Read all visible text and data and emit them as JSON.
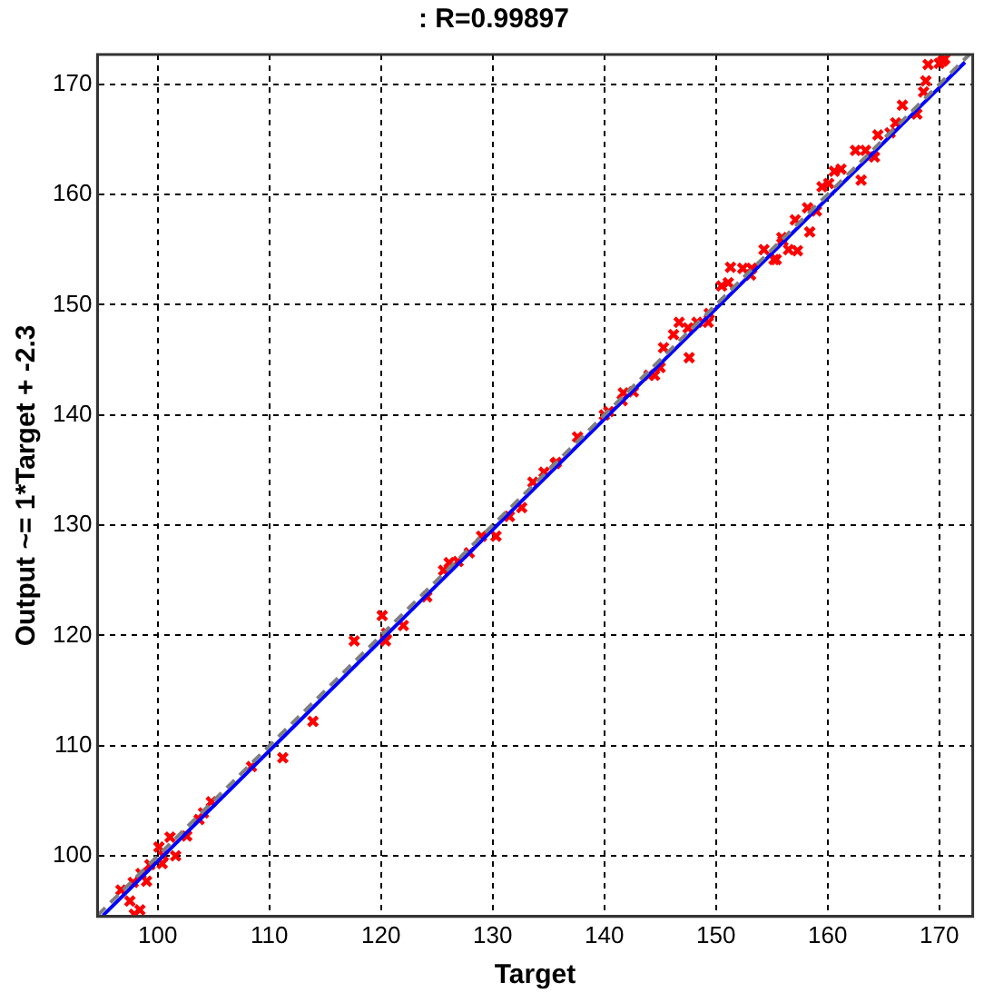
{
  "chart_data": {
    "type": "scatter",
    "title": ": R=0.99897",
    "xlabel": "Target",
    "ylabel": "Output ~= 1*Target + -2.3",
    "xlim": [
      94.6,
      173
    ],
    "ylim": [
      94.5,
      172.7
    ],
    "xticks": [
      100,
      110,
      120,
      130,
      140,
      150,
      160,
      170
    ],
    "yticks": [
      100,
      110,
      120,
      130,
      140,
      150,
      160,
      170
    ],
    "grid": true,
    "legend": false,
    "series": [
      {
        "type": "line",
        "color": "#808080",
        "line_style": "dashed",
        "marker": "none",
        "x": [
          94.6,
          172.7
        ],
        "values": [
          94.6,
          172.7
        ]
      },
      {
        "type": "line",
        "color": "#0000ff",
        "line_style": "solid",
        "marker": "none",
        "x": [
          95.1,
          172.3
        ],
        "values": [
          94.6,
          172.0
        ]
      },
      {
        "type": "scatter",
        "color": "#ff0000",
        "marker": "cross",
        "x": [
          96.7,
          97.5,
          98.4,
          97.9,
          97.8,
          98.5,
          99.0,
          99.3,
          100.1,
          100.4,
          100.5,
          101.1,
          101.6,
          102.6,
          103.7,
          104.1,
          104.8,
          108.4,
          111.2,
          113.9,
          117.6,
          120.1,
          120.4,
          120.5,
          122.0,
          124.1,
          125.6,
          126.1,
          126.9,
          127.9,
          129.0,
          130.3,
          131.5,
          132.6,
          133.6,
          134.6,
          135.6,
          135.7,
          137.6,
          140.0,
          140.4,
          141.6,
          141.7,
          142.6,
          144.0,
          144.5,
          145.0,
          145.3,
          146.2,
          146.7,
          147.6,
          147.5,
          148.3,
          149.4,
          149.3,
          150.5,
          151.1,
          151.3,
          152.4,
          153.1,
          154.3,
          155.2,
          156.0,
          153.2,
          155.4,
          156.5,
          157.3,
          155.9,
          157.1,
          158.4,
          158.2,
          159.0,
          159.5,
          160.1,
          160.6,
          161.2,
          163.0,
          162.5,
          163.4,
          164.2,
          164.5,
          165.6,
          166.1,
          168.0,
          166.7,
          168.8,
          168.6,
          169.0,
          170.0,
          170.5,
          170.3
        ],
        "values": [
          96.9,
          95.9,
          95.1,
          94.7,
          97.6,
          98.4,
          97.7,
          99.2,
          100.8,
          99.3,
          100.0,
          101.7,
          100.0,
          101.8,
          103.3,
          103.9,
          104.9,
          108.1,
          108.9,
          112.2,
          119.5,
          121.8,
          119.5,
          120.2,
          120.9,
          123.5,
          125.9,
          126.6,
          126.7,
          127.5,
          129.0,
          129.0,
          130.8,
          131.6,
          133.9,
          134.8,
          135.6,
          135.7,
          138.0,
          140.0,
          140.3,
          141.3,
          142.0,
          142.1,
          143.6,
          143.6,
          144.3,
          146.1,
          147.3,
          148.4,
          145.2,
          147.9,
          148.4,
          149.2,
          148.4,
          151.7,
          152.0,
          153.4,
          153.3,
          152.7,
          155.0,
          154.1,
          155.8,
          153.3,
          154.1,
          155.0,
          154.9,
          156.1,
          157.7,
          156.6,
          158.8,
          158.5,
          160.7,
          161.0,
          162.1,
          162.3,
          161.3,
          164.0,
          164.0,
          163.4,
          165.4,
          165.6,
          166.5,
          167.3,
          168.1,
          170.3,
          169.3,
          171.8,
          171.9,
          172.3,
          172.1
        ]
      }
    ]
  }
}
